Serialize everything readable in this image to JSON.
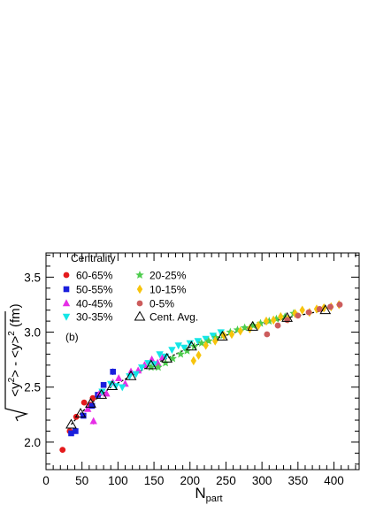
{
  "chart_data": {
    "type": "scatter",
    "panel_label": "(b)",
    "xlabel": "N",
    "xlabel_sub": "part",
    "ylabel": "√(<y²> - <y>²) (fm)",
    "ylabel_parts": {
      "lt1": "<y",
      "sup1": "2",
      "mid": "> - <y>",
      "sup2": "2",
      "units": "(fm)"
    },
    "xlim": [
      0,
      435
    ],
    "ylim": [
      1.75,
      3.72
    ],
    "xticks": [
      0,
      50,
      100,
      150,
      200,
      250,
      300,
      350,
      400
    ],
    "yticks": [
      2.0,
      2.5,
      3.0,
      3.5
    ],
    "ytick_labels": [
      "2.0",
      "2.5",
      "3.0",
      "3.5"
    ],
    "legend": {
      "title": "Centrality",
      "placement": "top-left"
    },
    "series": [
      {
        "name": "60-65%",
        "color": "#e41a1c",
        "marker": "circle",
        "x": [
          23,
          33,
          42,
          53,
          62,
          65
        ],
        "y": [
          1.93,
          2.1,
          2.23,
          2.36,
          2.34,
          2.4
        ],
        "err": [
          0.01,
          0.01,
          0.01,
          0.01,
          0.01,
          0.02
        ]
      },
      {
        "name": "50-55%",
        "color": "#1a1fdc",
        "marker": "square",
        "x": [
          35,
          41,
          52,
          64,
          72,
          80,
          93
        ],
        "y": [
          2.08,
          2.1,
          2.24,
          2.33,
          2.43,
          2.52,
          2.64
        ],
        "err": [
          0.01,
          0.01,
          0.01,
          0.02,
          0.02,
          0.02,
          0.03
        ]
      },
      {
        "name": "40-45%",
        "color": "#e62de6",
        "marker": "triangle-up",
        "x": [
          58,
          66,
          75,
          84,
          93,
          101,
          110,
          118,
          128,
          137,
          147,
          155,
          162
        ],
        "y": [
          2.3,
          2.19,
          2.45,
          2.44,
          2.54,
          2.58,
          2.53,
          2.64,
          2.65,
          2.7,
          2.75,
          2.72,
          2.77
        ],
        "err": [
          0.01,
          0.03,
          0.01,
          0.01,
          0.01,
          0.01,
          0.01,
          0.01,
          0.01,
          0.01,
          0.01,
          0.01,
          0.01
        ]
      },
      {
        "name": "30-35%",
        "color": "#14e6e6",
        "marker": "triangle-down",
        "x": [
          78,
          90,
          97,
          106,
          116,
          125,
          133,
          142,
          150,
          158,
          166,
          175,
          184,
          192,
          200,
          211,
          222,
          232,
          243
        ],
        "y": [
          2.46,
          2.53,
          2.51,
          2.5,
          2.6,
          2.62,
          2.68,
          2.72,
          2.71,
          2.8,
          2.78,
          2.84,
          2.88,
          2.86,
          2.9,
          2.92,
          2.94,
          2.97,
          3.0
        ],
        "err": [
          0.01,
          0.01,
          0.01,
          0.01,
          0.01,
          0.01,
          0.01,
          0.01,
          0.01,
          0.01,
          0.01,
          0.01,
          0.01,
          0.01,
          0.01,
          0.01,
          0.01,
          0.01,
          0.01
        ]
      },
      {
        "name": "20-25%",
        "color": "#4dcc4d",
        "marker": "star",
        "x": [
          146,
          156,
          166,
          176,
          187,
          196,
          206,
          216,
          226,
          236,
          246,
          256,
          266,
          276,
          288,
          298,
          310,
          320,
          332,
          344
        ],
        "y": [
          2.68,
          2.68,
          2.72,
          2.76,
          2.8,
          2.83,
          2.87,
          2.9,
          2.92,
          2.95,
          2.97,
          3.0,
          3.02,
          3.04,
          3.06,
          3.08,
          3.1,
          3.12,
          3.14,
          3.17
        ],
        "err": [
          0.01,
          0.01,
          0.01,
          0.01,
          0.01,
          0.01,
          0.01,
          0.01,
          0.01,
          0.01,
          0.01,
          0.01,
          0.01,
          0.01,
          0.01,
          0.01,
          0.01,
          0.01,
          0.01,
          0.01
        ]
      },
      {
        "name": "10-15%",
        "color": "#f7c40d",
        "marker": "diamond",
        "x": [
          205,
          212,
          222,
          235,
          247,
          258,
          270,
          283,
          295,
          306,
          316,
          326,
          336,
          346,
          356,
          366,
          376,
          386,
          396,
          407
        ],
        "y": [
          2.74,
          2.79,
          2.88,
          2.92,
          2.97,
          2.98,
          3.01,
          3.03,
          3.06,
          3.1,
          3.11,
          3.14,
          3.12,
          3.17,
          3.2,
          3.18,
          3.21,
          3.22,
          3.23,
          3.25
        ],
        "err": [
          0.02,
          0.02,
          0.01,
          0.01,
          0.01,
          0.01,
          0.01,
          0.01,
          0.01,
          0.01,
          0.01,
          0.01,
          0.01,
          0.01,
          0.01,
          0.01,
          0.01,
          0.01,
          0.01,
          0.01
        ]
      },
      {
        "name": "0-5%",
        "color": "#cc5c5c",
        "marker": "circle",
        "x": [
          307,
          322,
          335,
          350,
          365,
          380,
          395,
          408
        ],
        "y": [
          2.98,
          3.06,
          3.11,
          3.15,
          3.18,
          3.21,
          3.23,
          3.25
        ],
        "err": [
          0.02,
          0.01,
          0.01,
          0.01,
          0.01,
          0.01,
          0.01,
          0.01
        ]
      },
      {
        "name": "Cent. Avg.",
        "color": "#000000",
        "marker": "open-triangle",
        "x": [
          35,
          48,
          62,
          77,
          92,
          118,
          146,
          168,
          202,
          245,
          287,
          335,
          388
        ],
        "y": [
          2.16,
          2.26,
          2.35,
          2.43,
          2.51,
          2.6,
          2.7,
          2.76,
          2.87,
          2.96,
          3.05,
          3.13,
          3.2
        ]
      }
    ],
    "fit_curve": {
      "style": "dashed",
      "color": "#000000",
      "x_range": [
        30,
        400
      ]
    }
  }
}
